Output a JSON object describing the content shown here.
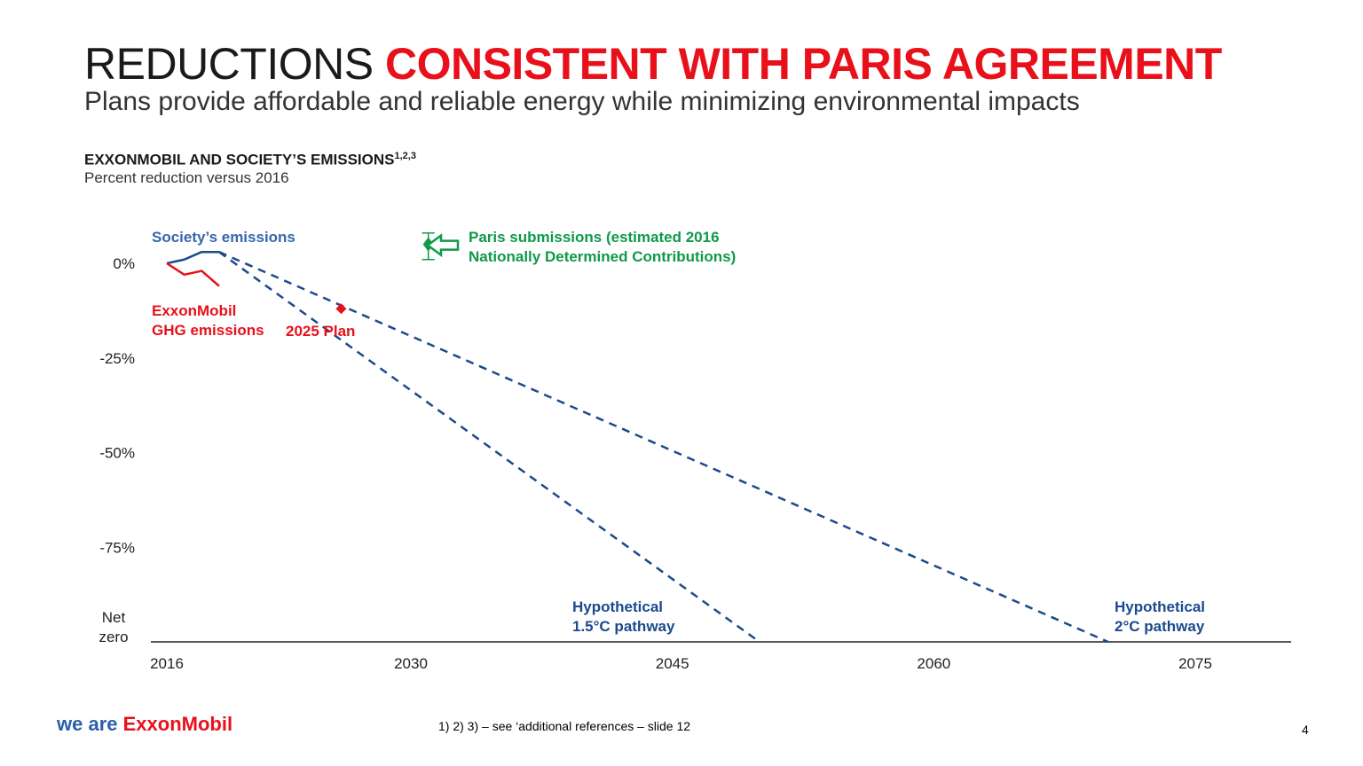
{
  "header": {
    "title_plain": "REDUCTIONS ",
    "title_accent": "CONSISTENT WITH PARIS AGREEMENT",
    "subtitle": "Plans provide affordable and reliable energy while minimizing environmental impacts"
  },
  "colors": {
    "accent_red": "#e8101a",
    "society_blue": "#1b4a8c",
    "paris_green": "#0e9a48",
    "axis": "#222222"
  },
  "chart_data": {
    "type": "line",
    "title": "EXXONMOBIL AND SOCIETY’S EMISSIONS",
    "title_sup": "1,2,3",
    "subtitle": "Percent reduction versus 2016",
    "x_ticks": [
      "2016",
      "2030",
      "2045",
      "2060",
      "2075"
    ],
    "y_ticks": [
      "0%",
      "-25%",
      "-50%",
      "-75%"
    ],
    "y_net_zero": [
      "Net",
      "zero"
    ],
    "xlim": [
      2015,
      2080
    ],
    "ylim": [
      -100,
      10
    ],
    "series": [
      {
        "name": "Society’s emissions",
        "style": "solid",
        "color": "#1b4a8c",
        "x": [
          2016,
          2017,
          2018,
          2019
        ],
        "y": [
          0,
          1,
          3,
          3
        ]
      },
      {
        "name": "ExxonMobil GHG emissions",
        "style": "solid",
        "color": "#e8101a",
        "x": [
          2016,
          2017,
          2018,
          2019
        ],
        "y": [
          0,
          -3,
          -2,
          -6
        ]
      },
      {
        "name": "Hypothetical 1.5°C pathway",
        "style": "dashed",
        "color": "#1b4a8c",
        "x": [
          2019,
          2050
        ],
        "y": [
          3,
          -100
        ]
      },
      {
        "name": "Hypothetical 2°C pathway",
        "style": "dashed",
        "color": "#1b4a8c",
        "x": [
          2019,
          2070
        ],
        "y": [
          3,
          -100
        ]
      }
    ],
    "points": [
      {
        "name": "2025 Plan",
        "x": 2026,
        "y": -12,
        "color": "#e8101a"
      }
    ],
    "paris_submissions": {
      "x": 2031,
      "y": 5,
      "low": 1,
      "high": 8,
      "color": "#0e9a48",
      "label_lines": [
        "Paris submissions (estimated 2016",
        "Nationally Determined Contributions)"
      ]
    },
    "labels": {
      "society": "Society’s emissions",
      "exxon": [
        "ExxonMobil",
        "GHG emissions"
      ],
      "plan": "2025 Plan",
      "p15": [
        "Hypothetical",
        "1.5°C pathway"
      ],
      "p20": [
        "Hypothetical",
        "2°C pathway"
      ]
    }
  },
  "footer": {
    "logo_we": "we are ",
    "logo_brand": "ExxonMobil",
    "footnote": "1) 2) 3) – see ‘additional references – slide 12",
    "page_number": "4"
  }
}
